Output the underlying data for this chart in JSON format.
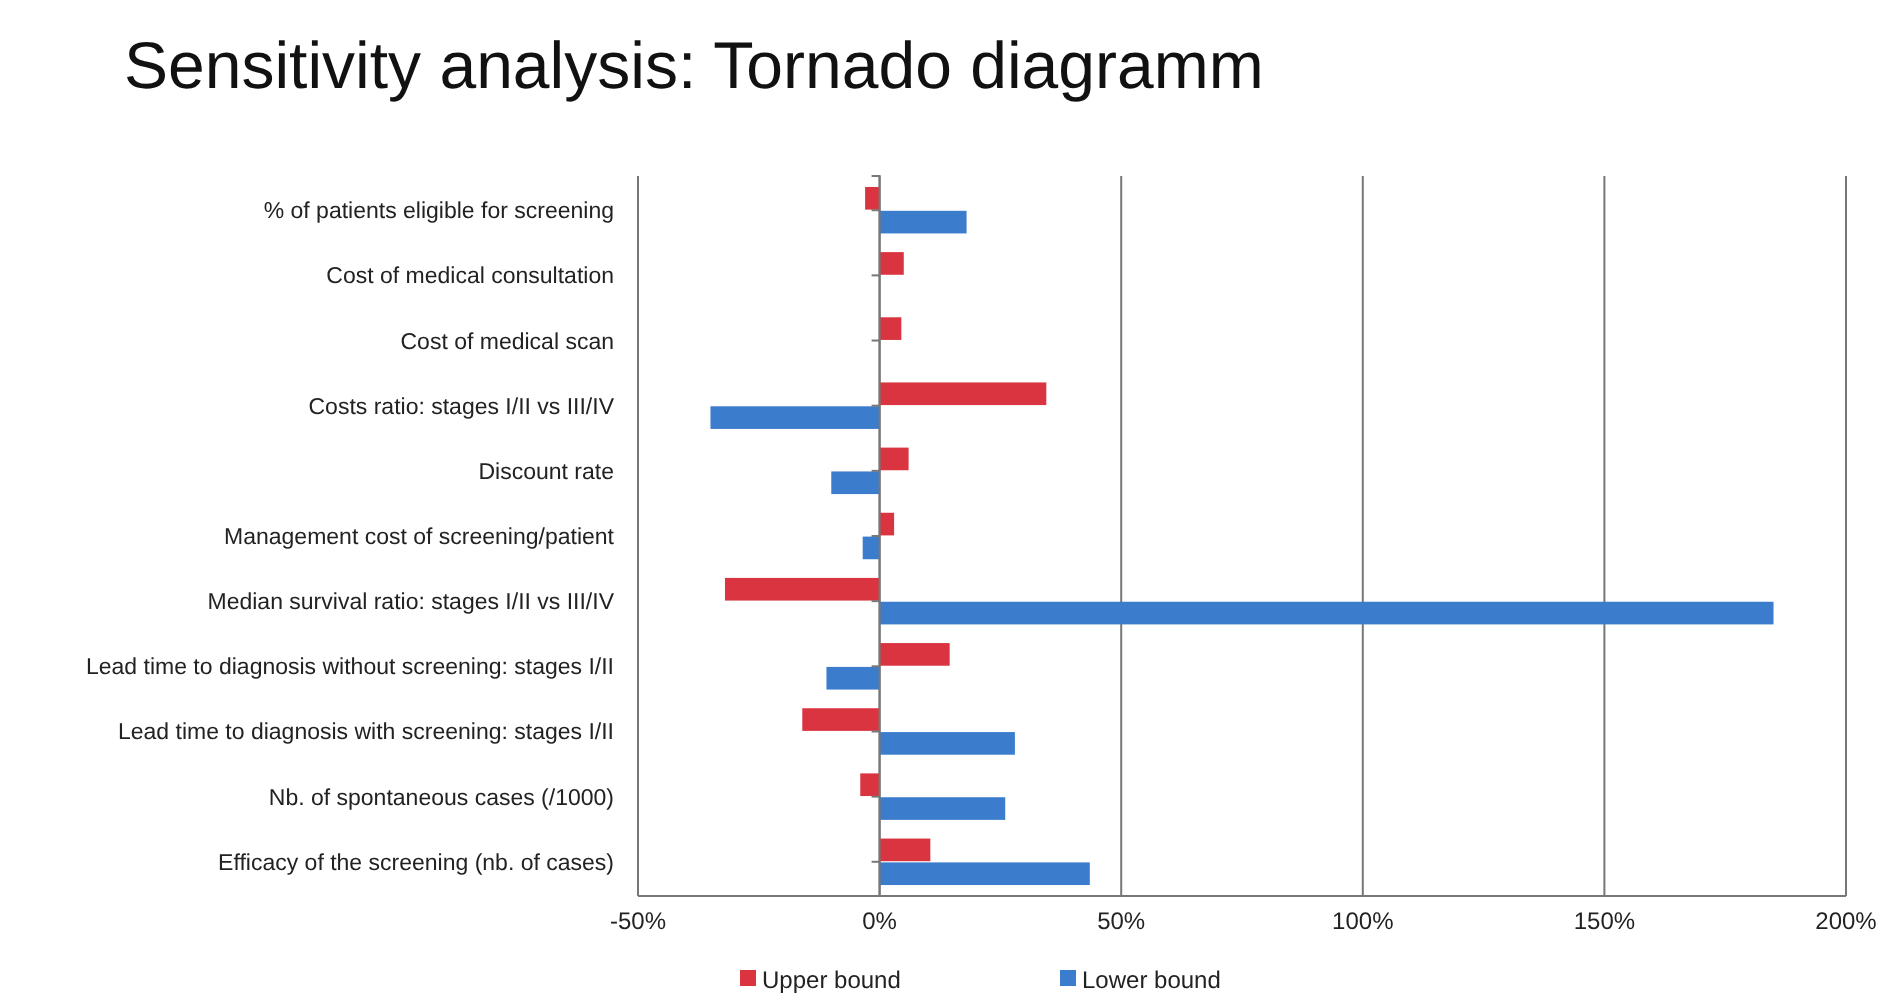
{
  "chart_data": {
    "type": "bar",
    "orientation": "horizontal",
    "title": "Sensitivity analysis: Tornado diagramm",
    "categories": [
      "% of patients eligible for screening",
      "Cost of medical consultation",
      "Cost of medical scan",
      "Costs ratio: stages I/II vs III/IV",
      "Discount rate",
      "Management cost of screening/patient",
      "Median survival ratio: stages I/II vs III/IV",
      "Lead time to diagnosis without screening: stages I/II",
      "Lead time to diagnosis with screening: stages I/II",
      "Nb. of spontaneous cases (/1000)",
      "Efficacy of the screening (nb. of cases)"
    ],
    "series": [
      {
        "name": "Upper bound",
        "color": "#d9343f",
        "values": [
          -3,
          5,
          4.5,
          34.5,
          6,
          3,
          -32,
          14.5,
          -16,
          -4,
          10.5
        ]
      },
      {
        "name": "Lower bound",
        "color": "#3c7ccc",
        "values": [
          18,
          null,
          null,
          -35,
          -10,
          -3.5,
          185,
          -11,
          28,
          26,
          43.5
        ]
      }
    ],
    "xlim": [
      -50,
      200
    ],
    "xticks": [
      {
        "value": -50,
        "label": "-50%"
      },
      {
        "value": 0,
        "label": "0%"
      },
      {
        "value": 50,
        "label": "50%"
      },
      {
        "value": 100,
        "label": "100%"
      },
      {
        "value": 150,
        "label": "150%"
      },
      {
        "value": 200,
        "label": "200%"
      }
    ],
    "grid": "x",
    "legend": "bottom"
  }
}
